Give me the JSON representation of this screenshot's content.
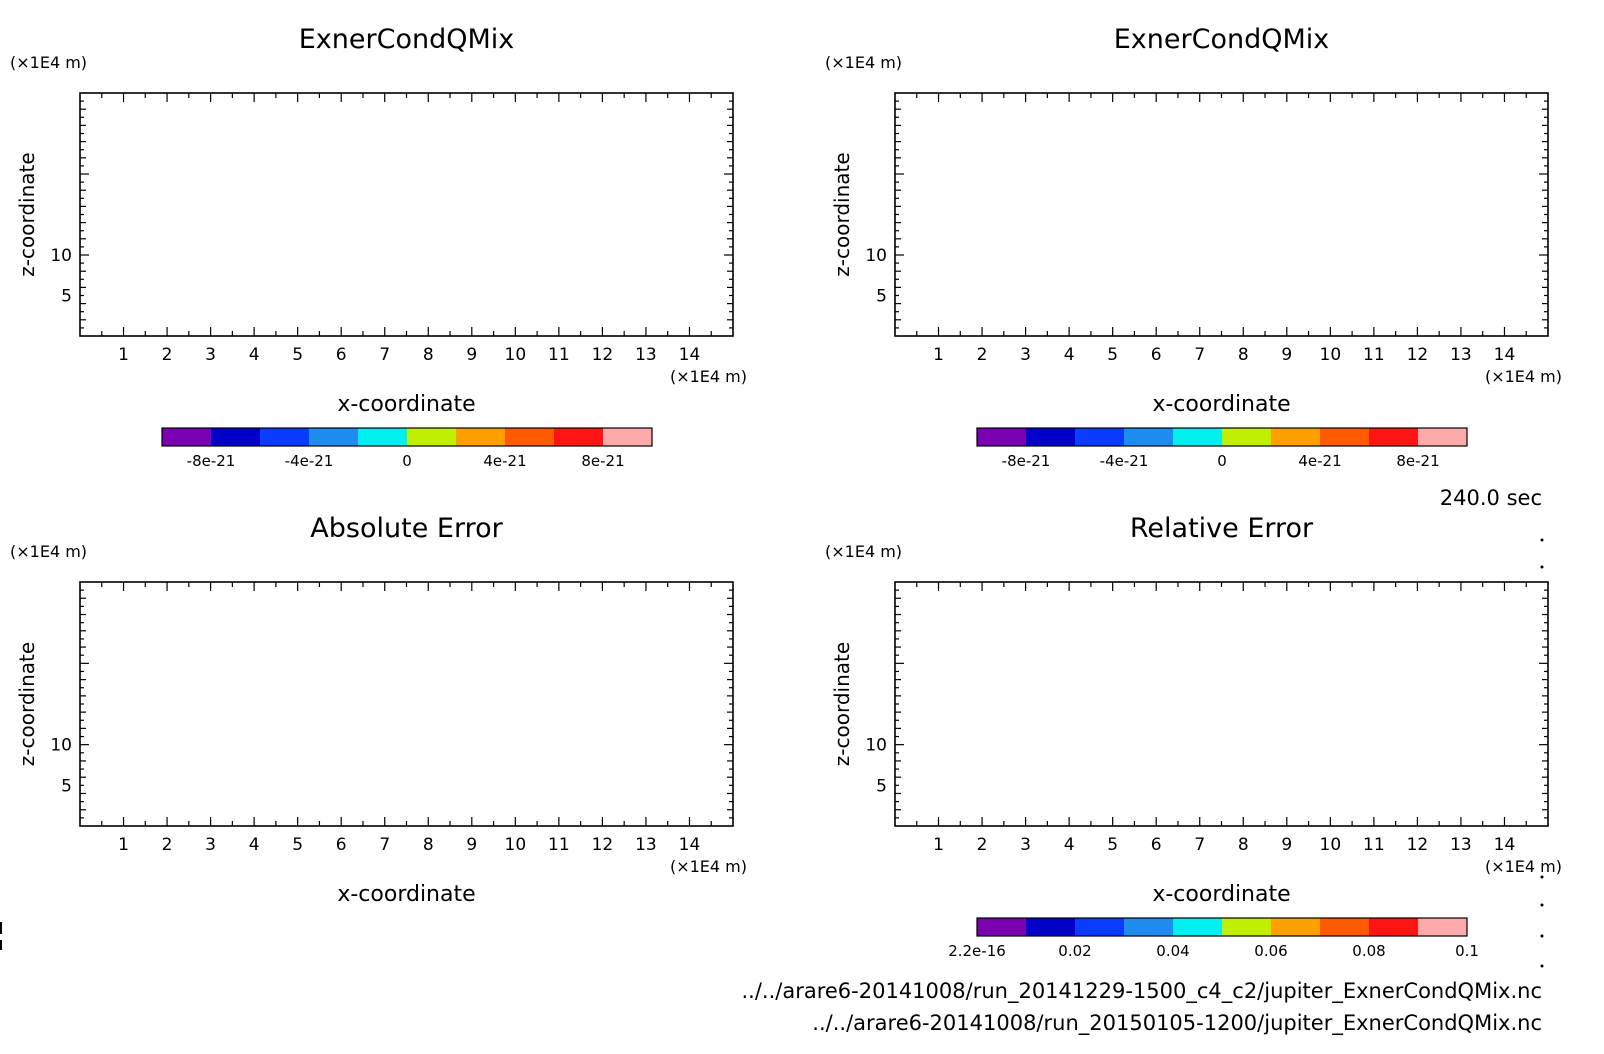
{
  "time_label": "240.0 sec",
  "files": [
    "../../arare6-20141008/run_20141229-1500_c4_c2/jupiter_ExnerCondQMix.nc",
    "../../arare6-20141008/run_20150105-1200/jupiter_ExnerCondQMix.nc"
  ],
  "chart_data": [
    {
      "type": "heatmap",
      "title": "ExnerCondQMix",
      "xlabel": "x-coordinate",
      "ylabel": "z-coordinate",
      "x_unit": "(×1E4 m)",
      "y_unit": "(×1E4 m)",
      "xlim": [
        0,
        15
      ],
      "ylim": [
        0,
        15
      ],
      "x_ticks": [
        "1",
        "2",
        "3",
        "4",
        "5",
        "6",
        "7",
        "8",
        "9",
        "10",
        "11",
        "12",
        "13",
        "14"
      ],
      "y_ticks": [
        "5",
        "10"
      ],
      "values": [],
      "colorbar": {
        "colors": [
          "#7a00b0",
          "#0000c8",
          "#0a3cff",
          "#1f8cf0",
          "#00f0f0",
          "#c0f000",
          "#ffa000",
          "#ff5a00",
          "#ff1414",
          "#ffaaaa"
        ],
        "labels": [
          "-8e-21",
          "-4e-21",
          "0",
          "4e-21",
          "8e-21"
        ]
      }
    },
    {
      "type": "heatmap",
      "title": "ExnerCondQMix",
      "xlabel": "x-coordinate",
      "ylabel": "z-coordinate",
      "x_unit": "(×1E4 m)",
      "y_unit": "(×1E4 m)",
      "xlim": [
        0,
        15
      ],
      "ylim": [
        0,
        15
      ],
      "x_ticks": [
        "1",
        "2",
        "3",
        "4",
        "5",
        "6",
        "7",
        "8",
        "9",
        "10",
        "11",
        "12",
        "13",
        "14"
      ],
      "y_ticks": [
        "5",
        "10"
      ],
      "values": [],
      "colorbar": {
        "colors": [
          "#7a00b0",
          "#0000c8",
          "#0a3cff",
          "#1f8cf0",
          "#00f0f0",
          "#c0f000",
          "#ffa000",
          "#ff5a00",
          "#ff1414",
          "#ffaaaa"
        ],
        "labels": [
          "-8e-21",
          "-4e-21",
          "0",
          "4e-21",
          "8e-21"
        ]
      }
    },
    {
      "type": "heatmap",
      "title": "Absolute Error",
      "xlabel": "x-coordinate",
      "ylabel": "z-coordinate",
      "x_unit": "(×1E4 m)",
      "y_unit": "(×1E4 m)",
      "xlim": [
        0,
        15
      ],
      "ylim": [
        0,
        15
      ],
      "x_ticks": [
        "1",
        "2",
        "3",
        "4",
        "5",
        "6",
        "7",
        "8",
        "9",
        "10",
        "11",
        "12",
        "13",
        "14"
      ],
      "y_ticks": [
        "5",
        "10"
      ],
      "values": []
    },
    {
      "type": "heatmap",
      "title": "Relative Error",
      "xlabel": "x-coordinate",
      "ylabel": "z-coordinate",
      "x_unit": "(×1E4 m)",
      "y_unit": "(×1E4 m)",
      "xlim": [
        0,
        15
      ],
      "ylim": [
        0,
        15
      ],
      "x_ticks": [
        "1",
        "2",
        "3",
        "4",
        "5",
        "6",
        "7",
        "8",
        "9",
        "10",
        "11",
        "12",
        "13",
        "14"
      ],
      "y_ticks": [
        "5",
        "10"
      ],
      "values": [],
      "colorbar": {
        "colors": [
          "#7a00b0",
          "#0000c8",
          "#0a3cff",
          "#1f8cf0",
          "#00f0f0",
          "#c0f000",
          "#ffa000",
          "#ff5a00",
          "#ff1414",
          "#ffaaaa"
        ],
        "labels": [
          "2.2e-16",
          "0.02",
          "0.04",
          "0.06",
          "0.08",
          "0.1"
        ]
      }
    }
  ]
}
